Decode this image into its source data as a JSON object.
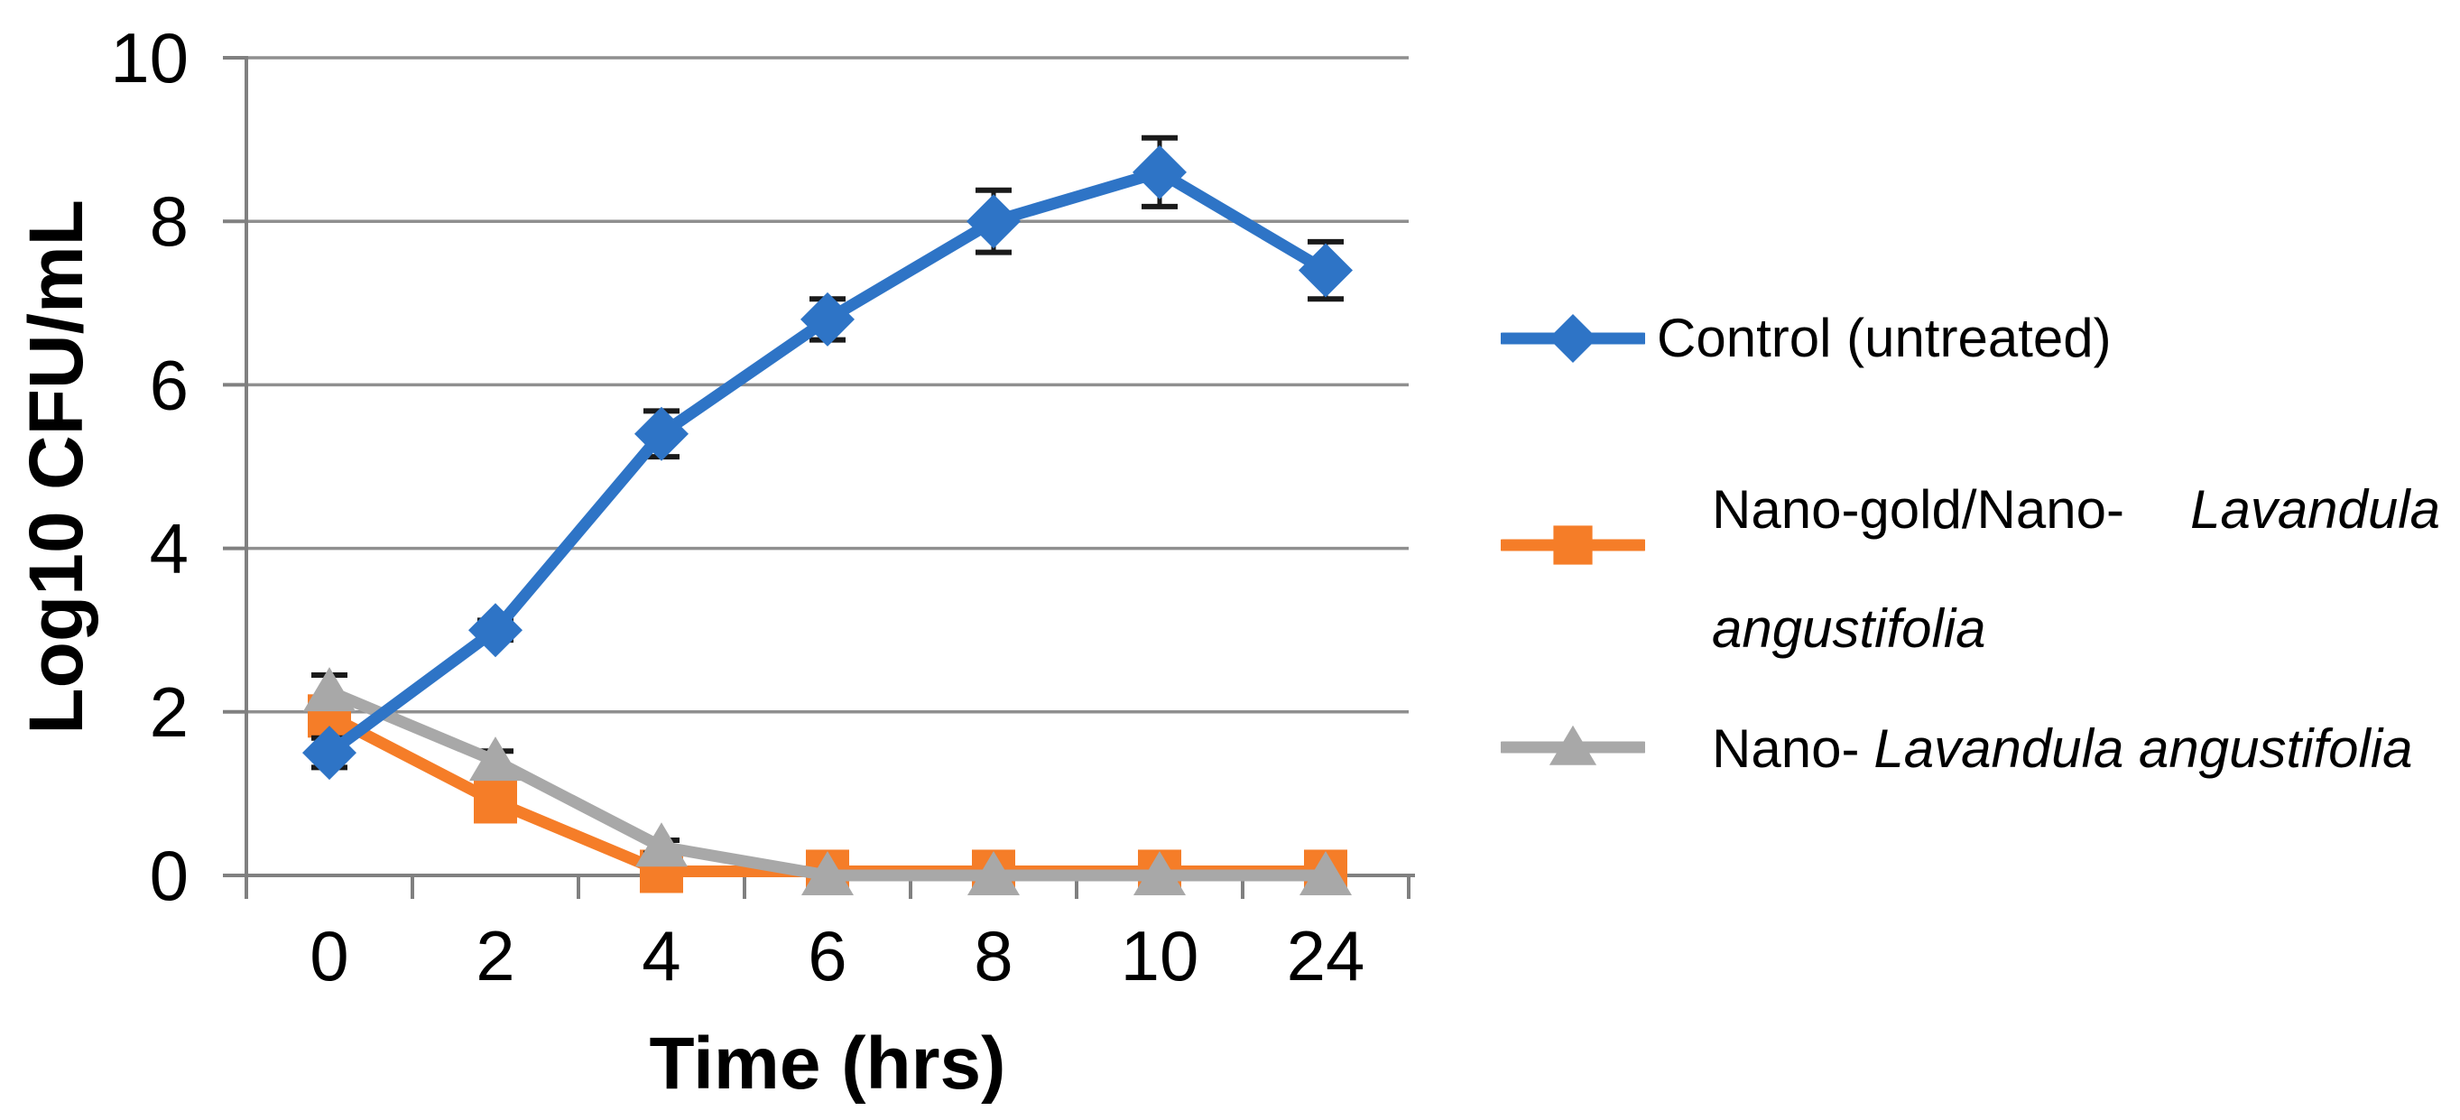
{
  "chart_data": {
    "type": "line",
    "categories": [
      "0",
      "2",
      "4",
      "6",
      "8",
      "10",
      "24"
    ],
    "xlabel": "Time (hrs)",
    "ylabel": "Log10 CFU/mL",
    "ylim": [
      0,
      10
    ],
    "yticks": [
      "0",
      "2",
      "4",
      "6",
      "8",
      "10"
    ],
    "grid": true,
    "legend_position": "right-of-plot",
    "error_bars": true,
    "series": [
      {
        "name": "Control (untreated)",
        "marker": "diamond",
        "color": "#2E74C6",
        "values": [
          1.5,
          3.0,
          5.4,
          6.8,
          8.0,
          8.6,
          7.4
        ],
        "errors": [
          0.18,
          0.12,
          0.28,
          0.25,
          0.38,
          0.42,
          0.35
        ]
      },
      {
        "name": "Nano-gold/Nano-Lavandula angustifolia",
        "marker": "square",
        "color": "#F57D28",
        "values": [
          1.95,
          0.9,
          0.05,
          0.05,
          0.05,
          0.05,
          0.05
        ],
        "errors": [
          0.1,
          0.08,
          0,
          0,
          0,
          0,
          0
        ]
      },
      {
        "name": "Nano-Lavandula angustifolia",
        "marker": "triangle",
        "color": "#A8A8A8",
        "values": [
          2.25,
          1.4,
          0.35,
          0,
          0,
          0,
          0
        ],
        "errors": [
          0.2,
          0.12,
          0.08,
          0,
          0,
          0,
          0
        ]
      }
    ],
    "colors": {
      "gridline": "#8F8F8F",
      "axis": "#808080",
      "error_bar": "#1A1A1A",
      "text": "#000000"
    }
  },
  "legend": {
    "item1": {
      "label": "Control (untreated)"
    },
    "item2": {
      "line1_regular": "Nano-gold/Nano-",
      "line1_italic": "Lavandula",
      "line2_italic": "angustifolia"
    },
    "item3": {
      "regular": "Nano-",
      "italic": "Lavandula angustifolia"
    }
  }
}
